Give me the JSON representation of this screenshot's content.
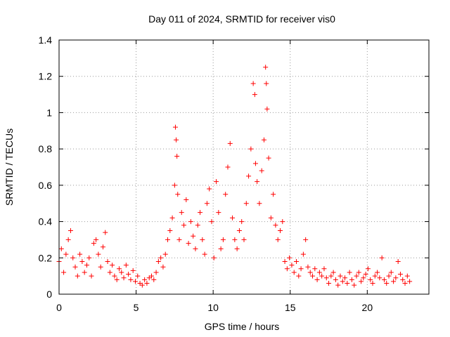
{
  "chart_data": {
    "type": "scatter",
    "title": "Day 011 of 2024, SRMTID for receiver vis0",
    "xlabel": "GPS time / hours",
    "ylabel": "SRMTID / TECUs",
    "xlim": [
      0,
      24
    ],
    "ylim": [
      0,
      1.4
    ],
    "xticks": [
      "0",
      "5",
      "10",
      "15",
      "20"
    ],
    "yticks": [
      "0",
      "0.2",
      "0.4",
      "0.6",
      "0.8",
      "1",
      "1.2",
      "1.4"
    ],
    "grid": true,
    "marker": "+",
    "color": "#ff0000",
    "series": [
      {
        "name": "SRMTID",
        "x": [
          0.0,
          0.15,
          0.3,
          0.45,
          0.6,
          0.75,
          0.9,
          1.05,
          1.2,
          1.35,
          1.5,
          1.65,
          1.8,
          1.95,
          2.1,
          2.25,
          2.4,
          2.55,
          2.7,
          2.85,
          3.0,
          3.15,
          3.3,
          3.45,
          3.6,
          3.75,
          3.9,
          4.05,
          4.2,
          4.35,
          4.5,
          4.65,
          4.8,
          4.95,
          5.1,
          5.25,
          5.4,
          5.55,
          5.7,
          5.85,
          6.0,
          6.15,
          6.3,
          6.45,
          6.6,
          6.75,
          6.9,
          7.05,
          7.2,
          7.35,
          7.5,
          7.55,
          7.6,
          7.65,
          7.7,
          7.8,
          7.95,
          8.1,
          8.25,
          8.4,
          8.55,
          8.7,
          8.85,
          9.0,
          9.15,
          9.3,
          9.45,
          9.6,
          9.75,
          9.9,
          10.05,
          10.2,
          10.35,
          10.5,
          10.65,
          10.8,
          10.95,
          11.1,
          11.25,
          11.4,
          11.55,
          11.7,
          11.85,
          12.0,
          12.15,
          12.3,
          12.45,
          12.6,
          12.7,
          12.75,
          12.85,
          13.0,
          13.15,
          13.3,
          13.4,
          13.45,
          13.5,
          13.6,
          13.75,
          13.9,
          14.05,
          14.2,
          14.35,
          14.5,
          14.65,
          14.8,
          14.95,
          15.1,
          15.25,
          15.4,
          15.55,
          15.7,
          15.85,
          16.0,
          16.15,
          16.3,
          16.45,
          16.6,
          16.75,
          16.9,
          17.05,
          17.2,
          17.35,
          17.5,
          17.65,
          17.8,
          17.95,
          18.1,
          18.25,
          18.4,
          18.55,
          18.7,
          18.85,
          19.0,
          19.15,
          19.3,
          19.45,
          19.6,
          19.75,
          19.9,
          20.05,
          20.2,
          20.35,
          20.5,
          20.65,
          20.8,
          20.95,
          21.1,
          21.25,
          21.4,
          21.55,
          21.7,
          21.85,
          22.0,
          22.15,
          22.3,
          22.45,
          22.6,
          22.75
        ],
        "y": [
          0.18,
          0.25,
          0.12,
          0.22,
          0.3,
          0.35,
          0.2,
          0.15,
          0.1,
          0.22,
          0.18,
          0.12,
          0.16,
          0.2,
          0.1,
          0.28,
          0.3,
          0.22,
          0.15,
          0.26,
          0.34,
          0.18,
          0.12,
          0.16,
          0.1,
          0.08,
          0.14,
          0.12,
          0.09,
          0.16,
          0.11,
          0.08,
          0.13,
          0.07,
          0.1,
          0.06,
          0.05,
          0.08,
          0.06,
          0.09,
          0.1,
          0.08,
          0.12,
          0.18,
          0.2,
          0.15,
          0.22,
          0.3,
          0.35,
          0.42,
          0.6,
          0.92,
          0.85,
          0.76,
          0.55,
          0.3,
          0.45,
          0.38,
          0.52,
          0.28,
          0.4,
          0.32,
          0.25,
          0.38,
          0.45,
          0.3,
          0.22,
          0.5,
          0.58,
          0.4,
          0.2,
          0.62,
          0.45,
          0.25,
          0.3,
          0.55,
          0.7,
          0.83,
          0.42,
          0.3,
          0.25,
          0.35,
          0.4,
          0.3,
          0.5,
          0.65,
          0.8,
          1.16,
          1.1,
          0.72,
          0.62,
          0.5,
          0.68,
          0.85,
          1.25,
          1.16,
          1.02,
          0.75,
          0.42,
          0.55,
          0.38,
          0.3,
          0.35,
          0.4,
          0.18,
          0.14,
          0.2,
          0.16,
          0.12,
          0.18,
          0.1,
          0.14,
          0.22,
          0.3,
          0.15,
          0.12,
          0.1,
          0.14,
          0.08,
          0.12,
          0.1,
          0.14,
          0.09,
          0.06,
          0.1,
          0.12,
          0.08,
          0.05,
          0.1,
          0.07,
          0.09,
          0.06,
          0.12,
          0.08,
          0.05,
          0.1,
          0.12,
          0.07,
          0.09,
          0.11,
          0.14,
          0.08,
          0.06,
          0.1,
          0.12,
          0.09,
          0.2,
          0.08,
          0.06,
          0.1,
          0.12,
          0.07,
          0.09,
          0.18,
          0.11,
          0.08,
          0.06,
          0.1,
          0.07
        ]
      }
    ]
  }
}
